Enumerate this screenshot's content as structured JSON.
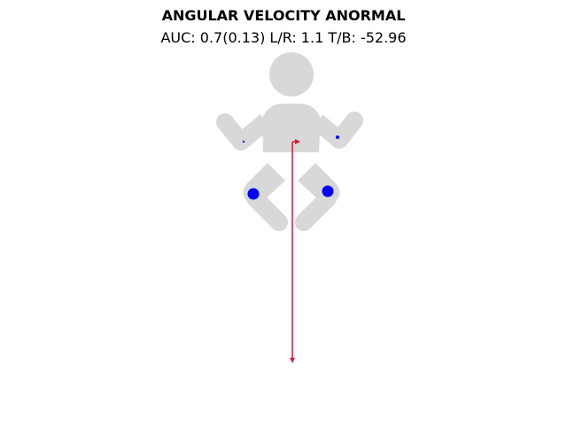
{
  "figure": {
    "title": "ANGULAR VELOCITY ANORMAL",
    "subtitle": "AUC: 0.7(0.13) L/R: 1.1 T/B: -52.96"
  },
  "colors": {
    "body": "#d8d8d8",
    "markers": "#0000ff",
    "arrow": "#d6173a"
  },
  "icons": {
    "figure_icon": "infant-silhouette-icon"
  }
}
